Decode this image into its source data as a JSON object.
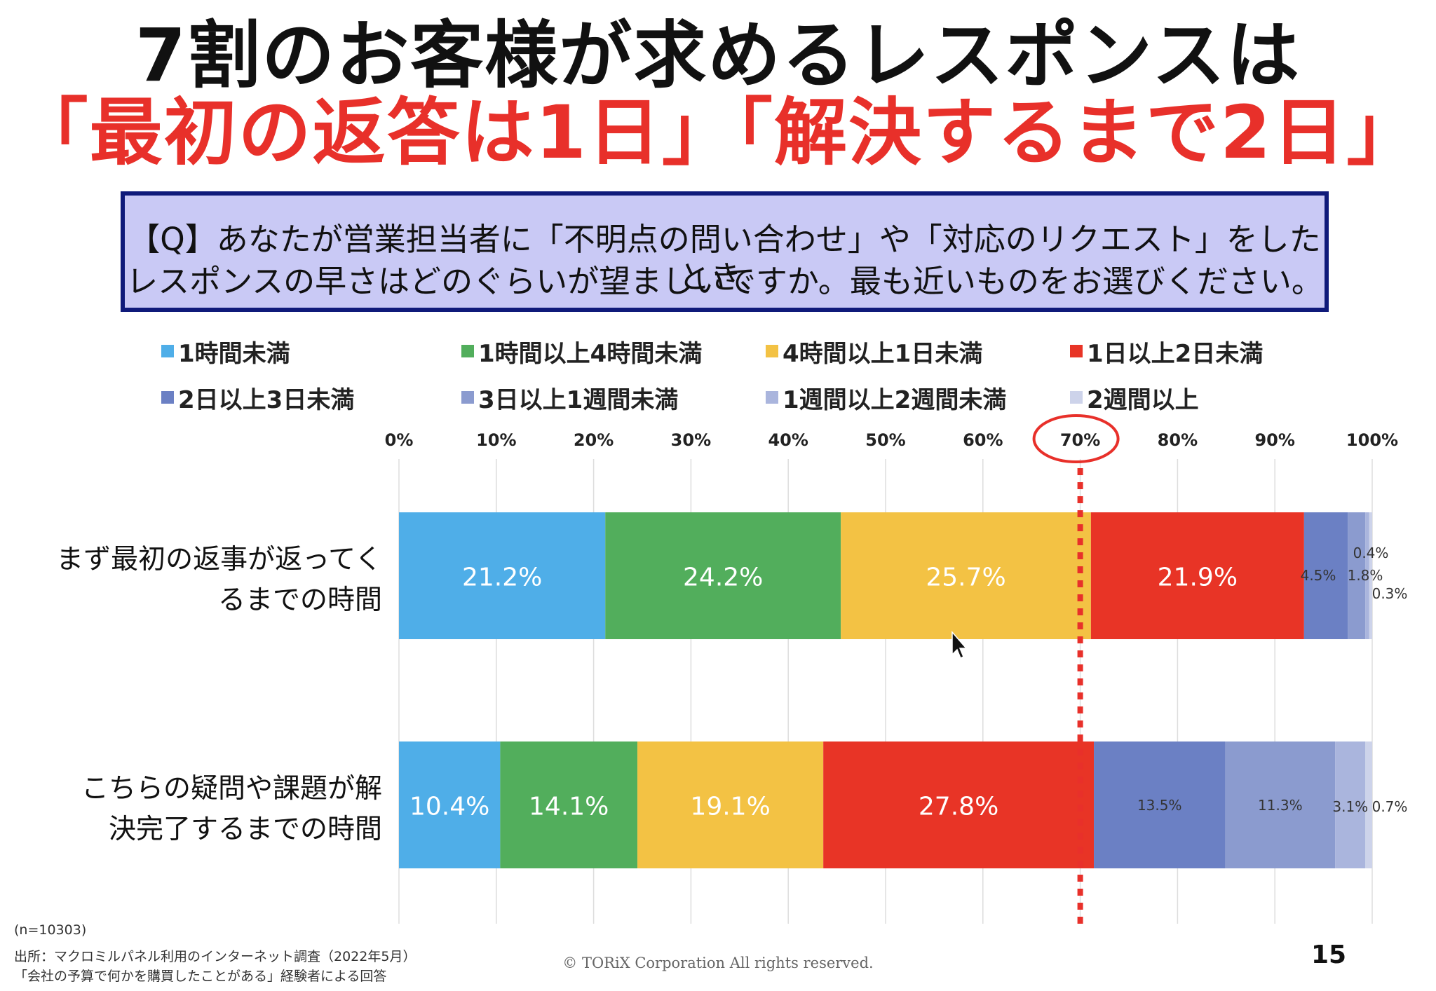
{
  "title": {
    "line1": "7割のお客様が求めるレスポンスは",
    "line2": "「最初の返答は1日」「解決するまで2日」"
  },
  "question": {
    "line1": "【Q】あなたが営業担当者に「不明点の問い合わせ」や「対応のリクエスト」をしたとき、",
    "line2": "レスポンスの早さはどのぐらいが望ましいですか。最も近いものをお選びください。"
  },
  "rows": [
    {
      "label_line1": "まず最初の返事が返ってく",
      "label_line2": "るまでの時間"
    },
    {
      "label_line1": "こちらの疑問や課題が解",
      "label_line2": "決完了するまでの時間"
    }
  ],
  "footer": {
    "n": "(n=10303)",
    "source": "出所：マクロミルパネル利用のインターネット調査（2022年5月）",
    "respondents": "「会社の予算で何かを購買したことがある」経験者による回答",
    "copyright": "© TORiX Corporation All rights reserved.",
    "page": "15"
  },
  "chart_data": {
    "type": "bar",
    "orientation": "horizontal",
    "stacked": true,
    "categories": [
      "まず最初の返事が返ってくるまでの時間",
      "こちらの疑問や課題が解決完了するまでの時間"
    ],
    "x_ticks": [
      "0%",
      "10%",
      "20%",
      "30%",
      "40%",
      "50%",
      "60%",
      "70%",
      "80%",
      "90%",
      "100%"
    ],
    "xlim": [
      0,
      100
    ],
    "grid": true,
    "legend": "top",
    "highlight": {
      "x": 70,
      "label": "70%",
      "color": "#e8302a",
      "style": "dotted-line-and-circle"
    },
    "series": [
      {
        "name": "1時間未満",
        "color": "#4faee8",
        "values": [
          21.2,
          10.4
        ],
        "labels": [
          "21.2%",
          "10.4%"
        ]
      },
      {
        "name": "1時間以上4時間未満",
        "color": "#52ae5c",
        "values": [
          24.2,
          14.1
        ],
        "labels": [
          "24.2%",
          "14.1%"
        ]
      },
      {
        "name": "4時間以上1日未満",
        "color": "#f3c244",
        "values": [
          25.7,
          19.1
        ],
        "labels": [
          "25.7%",
          "19.1%"
        ]
      },
      {
        "name": "1日以上2日未満",
        "color": "#e83426",
        "values": [
          21.9,
          27.8
        ],
        "labels": [
          "21.9%",
          "27.8%"
        ]
      },
      {
        "name": "2日以上3日未満",
        "color": "#6b80c4",
        "values": [
          4.5,
          13.5
        ],
        "labels": [
          "4.5%",
          "13.5%"
        ]
      },
      {
        "name": "3日以上1週間未満",
        "color": "#8b9bcf",
        "values": [
          1.8,
          11.3
        ],
        "labels": [
          "1.8%",
          "11.3%"
        ]
      },
      {
        "name": "1週間以上2週間未満",
        "color": "#aab5dd",
        "values": [
          0.4,
          3.1
        ],
        "labels": [
          "0.4%",
          "3.1%"
        ]
      },
      {
        "name": "2週間以上",
        "color": "#cdd3ea",
        "values": [
          0.3,
          0.7
        ],
        "labels": [
          "0.3%",
          "0.7%"
        ]
      }
    ]
  }
}
